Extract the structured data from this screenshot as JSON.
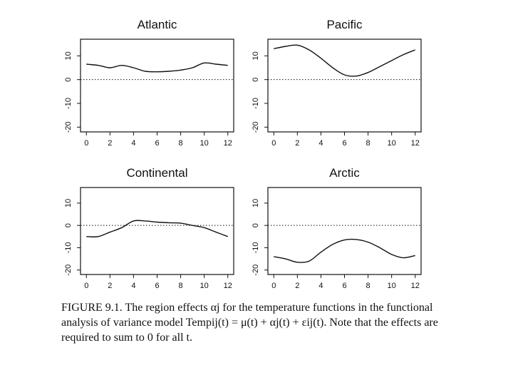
{
  "chart_data": [
    {
      "type": "line",
      "title": "Atlantic",
      "xlabel": "",
      "ylabel": "",
      "xlim": [
        -0.5,
        12.5
      ],
      "ylim": [
        -22,
        17
      ],
      "xticks": [
        0,
        2,
        4,
        6,
        8,
        10,
        12
      ],
      "yticks": [
        -20,
        -10,
        0,
        10
      ],
      "reference_line": 0,
      "x": [
        0,
        1,
        2,
        3,
        4,
        5,
        6,
        7,
        8,
        9,
        10,
        11,
        12
      ],
      "values": [
        6.5,
        6,
        5,
        6,
        5,
        3.5,
        3.3,
        3.5,
        4,
        5,
        7,
        6.5,
        6
      ]
    },
    {
      "type": "line",
      "title": "Pacific",
      "xlabel": "",
      "ylabel": "",
      "xlim": [
        -0.5,
        12.5
      ],
      "ylim": [
        -22,
        17
      ],
      "xticks": [
        0,
        2,
        4,
        6,
        8,
        10,
        12
      ],
      "yticks": [
        -20,
        -10,
        0,
        10
      ],
      "reference_line": 0,
      "x": [
        0,
        1,
        2,
        3,
        4,
        5,
        6,
        7,
        8,
        9,
        10,
        11,
        12
      ],
      "values": [
        13,
        14,
        14.5,
        12.5,
        9,
        5,
        2,
        1.5,
        3,
        5.5,
        8,
        10.5,
        12.5
      ]
    },
    {
      "type": "line",
      "title": "Continental",
      "xlabel": "",
      "ylabel": "",
      "xlim": [
        -0.5,
        12.5
      ],
      "ylim": [
        -22,
        17
      ],
      "xticks": [
        0,
        2,
        4,
        6,
        8,
        10,
        12
      ],
      "yticks": [
        -20,
        -10,
        0,
        10
      ],
      "reference_line": 0,
      "x": [
        0,
        1,
        2,
        3,
        4,
        5,
        6,
        7,
        8,
        9,
        10,
        11,
        12
      ],
      "values": [
        -5,
        -5,
        -3,
        -1,
        2,
        2,
        1.5,
        1.2,
        1,
        0,
        -1,
        -3,
        -5
      ]
    },
    {
      "type": "line",
      "title": "Arctic",
      "xlabel": "",
      "ylabel": "",
      "xlim": [
        -0.5,
        12.5
      ],
      "ylim": [
        -22,
        17
      ],
      "xticks": [
        0,
        2,
        4,
        6,
        8,
        10,
        12
      ],
      "yticks": [
        -20,
        -10,
        0,
        10
      ],
      "reference_line": 0,
      "x": [
        0,
        1,
        2,
        3,
        4,
        5,
        6,
        7,
        8,
        9,
        10,
        11,
        12
      ],
      "values": [
        -14,
        -15,
        -16.5,
        -16,
        -12,
        -8.5,
        -6.5,
        -6.3,
        -7.5,
        -10,
        -13,
        -14.5,
        -13.5
      ]
    }
  ],
  "caption": {
    "text": "FIGURE 9.1. The region effects αj for the temperature functions in the functional analysis of variance model Tempij(t) = μ(t) + αj(t) + εij(t). Note that the effects are required to sum to 0 for all t."
  },
  "colors": {
    "ink": "#111111",
    "background": "#ffffff"
  }
}
